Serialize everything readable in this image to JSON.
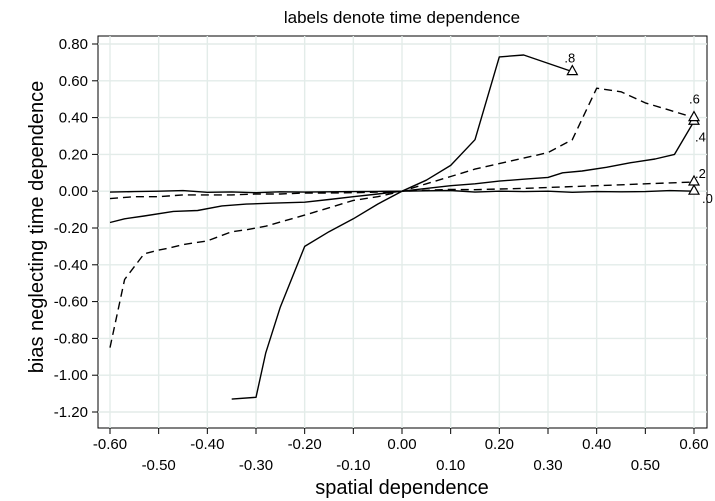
{
  "chart_data": {
    "type": "line",
    "title": "labels denote time dependence",
    "xlabel": "spatial dependence",
    "ylabel": "bias neglecting time dependence",
    "xlim": [
      -0.6,
      0.6
    ],
    "ylim": [
      -1.2,
      0.8
    ],
    "grid": true,
    "legend": "none",
    "x_ticks": [
      "-0.60",
      "-0.50",
      "-0.40",
      "-0.30",
      "-0.20",
      "-0.10",
      "0.00",
      "0.10",
      "0.20",
      "0.30",
      "0.40",
      "0.50",
      "0.60"
    ],
    "y_ticks": [
      "-1.20",
      "-1.00",
      "-0.80",
      "-0.60",
      "-0.40",
      "-0.20",
      "0.00",
      "0.20",
      "0.40",
      "0.60",
      "0.80"
    ],
    "series": [
      {
        "name": ".0",
        "line_style": "solid",
        "x": [
          -0.6,
          -0.55,
          -0.5,
          -0.45,
          -0.4,
          -0.35,
          -0.3,
          -0.25,
          -0.2,
          -0.15,
          -0.1,
          -0.05,
          0.0,
          0.05,
          0.1,
          0.15,
          0.2,
          0.25,
          0.3,
          0.35,
          0.4,
          0.45,
          0.5,
          0.55,
          0.6
        ],
        "y": [
          -0.005,
          -0.002,
          0.0,
          0.003,
          -0.006,
          -0.004,
          -0.008,
          -0.003,
          -0.005,
          -0.003,
          -0.002,
          -0.001,
          0.0,
          0.002,
          0.004,
          -0.005,
          0.0,
          -0.002,
          0.0,
          -0.006,
          -0.002,
          -0.003,
          -0.002,
          0.003,
          0.0
        ]
      },
      {
        "name": ".2",
        "line_style": "dashed",
        "x": [
          -0.6,
          -0.55,
          -0.5,
          -0.45,
          -0.4,
          -0.35,
          -0.3,
          -0.25,
          -0.2,
          -0.15,
          -0.1,
          -0.05,
          0.0,
          0.05,
          0.1,
          0.15,
          0.2,
          0.25,
          0.3,
          0.35,
          0.4,
          0.45,
          0.5,
          0.55,
          0.6
        ],
        "y": [
          -0.04,
          -0.03,
          -0.03,
          -0.02,
          -0.02,
          -0.02,
          -0.015,
          -0.015,
          -0.01,
          -0.01,
          -0.008,
          -0.005,
          0.0,
          0.005,
          0.01,
          0.008,
          0.012,
          0.015,
          0.02,
          0.025,
          0.03,
          0.035,
          0.04,
          0.045,
          0.05
        ]
      },
      {
        "name": ".4",
        "line_style": "solid",
        "x": [
          -0.6,
          -0.57,
          -0.53,
          -0.47,
          -0.42,
          -0.37,
          -0.32,
          -0.27,
          -0.2,
          -0.15,
          -0.1,
          -0.05,
          0.0,
          0.05,
          0.1,
          0.15,
          0.2,
          0.25,
          0.3,
          0.33,
          0.37,
          0.42,
          0.47,
          0.52,
          0.56,
          0.6
        ],
        "y": [
          -0.17,
          -0.15,
          -0.135,
          -0.11,
          -0.105,
          -0.08,
          -0.07,
          -0.065,
          -0.06,
          -0.045,
          -0.03,
          -0.015,
          0.0,
          0.015,
          0.03,
          0.04,
          0.055,
          0.065,
          0.075,
          0.1,
          0.11,
          0.13,
          0.155,
          0.175,
          0.2,
          0.38
        ]
      },
      {
        "name": ".6",
        "line_style": "dashed",
        "x": [
          -0.6,
          -0.57,
          -0.53,
          -0.5,
          -0.48,
          -0.45,
          -0.4,
          -0.35,
          -0.32,
          -0.28,
          -0.2,
          -0.15,
          -0.1,
          -0.05,
          0.0,
          0.05,
          0.1,
          0.15,
          0.2,
          0.25,
          0.3,
          0.35,
          0.4,
          0.45,
          0.5,
          0.55,
          0.6
        ],
        "y": [
          -0.85,
          -0.48,
          -0.34,
          -0.32,
          -0.31,
          -0.29,
          -0.27,
          -0.22,
          -0.21,
          -0.19,
          -0.13,
          -0.09,
          -0.05,
          -0.03,
          0.0,
          0.04,
          0.08,
          0.12,
          0.15,
          0.18,
          0.21,
          0.28,
          0.56,
          0.54,
          0.48,
          0.44,
          0.4
        ]
      },
      {
        "name": ".8",
        "line_style": "solid",
        "x": [
          -0.35,
          -0.3,
          -0.28,
          -0.25,
          -0.2,
          -0.15,
          -0.1,
          -0.05,
          0.0,
          0.05,
          0.1,
          0.15,
          0.2,
          0.25,
          0.35
        ],
        "y": [
          -1.13,
          -1.12,
          -0.88,
          -0.63,
          -0.3,
          -0.22,
          -0.15,
          -0.07,
          0.0,
          0.06,
          0.14,
          0.28,
          0.73,
          0.74,
          0.65
        ]
      }
    ],
    "end_markers": "triangle"
  }
}
